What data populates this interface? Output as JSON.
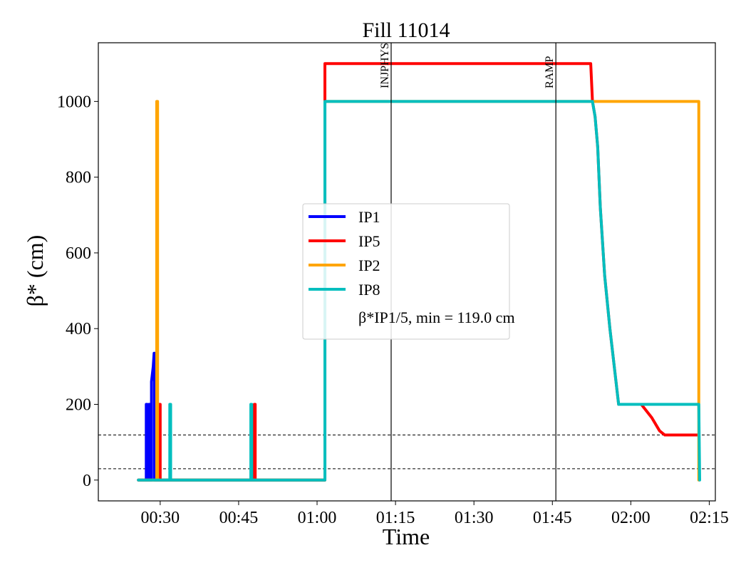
{
  "chart_data": {
    "type": "line",
    "title": "Fill 11014",
    "xlabel": "Time",
    "ylabel": "β* (cm)",
    "xlim": [
      "00:18:10",
      "02:16:10"
    ],
    "ylim": [
      -55,
      1155
    ],
    "x_ticks": [
      {
        "t": "00:30",
        "label": "00:30"
      },
      {
        "t": "00:45",
        "label": "00:45"
      },
      {
        "t": "01:00",
        "label": "01:00"
      },
      {
        "t": "01:15",
        "label": "01:15"
      },
      {
        "t": "01:30",
        "label": "01:30"
      },
      {
        "t": "01:45",
        "label": "01:45"
      },
      {
        "t": "02:00",
        "label": "02:00"
      },
      {
        "t": "02:15",
        "label": "02:15"
      }
    ],
    "y_ticks": [
      {
        "v": 0,
        "label": "0"
      },
      {
        "v": 200,
        "label": "200"
      },
      {
        "v": 400,
        "label": "400"
      },
      {
        "v": 600,
        "label": "600"
      },
      {
        "v": 800,
        "label": "800"
      },
      {
        "v": 1000,
        "label": "1000"
      }
    ],
    "grid": false,
    "legend_position": "center",
    "legend_note": "β*IP1/5, min = 119.0 cm",
    "hlines": [
      {
        "y": 119,
        "style": "dashed",
        "color": "#000000"
      },
      {
        "y": 30,
        "style": "dashed",
        "color": "#000000"
      }
    ],
    "vlines": [
      {
        "x": "01:14:10",
        "label": "INJPHYS",
        "color": "#000000"
      },
      {
        "x": "01:45:40",
        "label": "RAMP",
        "color": "#000000"
      }
    ],
    "series": [
      {
        "name": "IP1",
        "color": "#0000ff",
        "points": [
          [
            "00:25:50",
            0
          ],
          [
            "00:27:20",
            0
          ],
          [
            "00:27:20",
            200
          ],
          [
            "00:27:30",
            200
          ],
          [
            "00:27:30",
            0
          ],
          [
            "00:27:50",
            0
          ],
          [
            "00:27:50",
            200
          ],
          [
            "00:28:00",
            200
          ],
          [
            "00:28:00",
            0
          ],
          [
            "00:28:20",
            0
          ],
          [
            "00:28:20",
            260
          ],
          [
            "00:28:40",
            300
          ],
          [
            "00:28:50",
            335
          ],
          [
            "00:28:55",
            335
          ],
          [
            "00:28:55",
            0
          ],
          [
            "01:01:30",
            0
          ],
          [
            "01:01:30",
            1000
          ]
        ]
      },
      {
        "name": "IP5",
        "color": "#ff0000",
        "points": [
          [
            "00:25:50",
            0
          ],
          [
            "00:29:50",
            0
          ],
          [
            "00:29:50",
            200
          ],
          [
            "00:30:00",
            200
          ],
          [
            "00:30:00",
            0
          ],
          [
            "00:48:00",
            0
          ],
          [
            "00:48:00",
            200
          ],
          [
            "00:48:10",
            200
          ],
          [
            "00:48:10",
            0
          ],
          [
            "01:01:30",
            0
          ],
          [
            "01:01:30",
            1100
          ],
          [
            "01:52:20",
            1100
          ],
          [
            "01:52:40",
            1000
          ],
          [
            "01:53:10",
            960
          ],
          [
            "01:53:40",
            880
          ],
          [
            "01:54:10",
            720
          ],
          [
            "01:55:00",
            540
          ],
          [
            "01:56:00",
            400
          ],
          [
            "01:57:00",
            280
          ],
          [
            "01:57:40",
            200
          ],
          [
            "02:02:00",
            200
          ],
          [
            "02:04:00",
            165
          ],
          [
            "02:05:30",
            130
          ],
          [
            "02:06:30",
            119
          ],
          [
            "02:12:40",
            119
          ]
        ]
      },
      {
        "name": "IP2",
        "color": "#ffa500",
        "points": [
          [
            "00:25:50",
            0
          ],
          [
            "00:29:20",
            0
          ],
          [
            "00:29:20",
            1000
          ],
          [
            "00:29:30",
            1000
          ],
          [
            "00:29:30",
            0
          ],
          [
            "01:01:30",
            0
          ],
          [
            "01:01:30",
            1000
          ],
          [
            "02:13:00",
            1000
          ],
          [
            "02:13:00",
            0
          ]
        ]
      },
      {
        "name": "IP8",
        "color": "#00bebe",
        "points": [
          [
            "00:25:50",
            0
          ],
          [
            "00:31:50",
            0
          ],
          [
            "00:31:50",
            200
          ],
          [
            "00:32:00",
            200
          ],
          [
            "00:32:00",
            0
          ],
          [
            "00:47:20",
            0
          ],
          [
            "00:47:20",
            200
          ],
          [
            "00:47:30",
            200
          ],
          [
            "00:47:30",
            0
          ],
          [
            "01:01:30",
            0
          ],
          [
            "01:01:30",
            1000
          ],
          [
            "01:52:40",
            1000
          ],
          [
            "01:53:10",
            960
          ],
          [
            "01:53:40",
            880
          ],
          [
            "01:54:10",
            720
          ],
          [
            "01:55:00",
            540
          ],
          [
            "01:56:00",
            400
          ],
          [
            "01:57:00",
            280
          ],
          [
            "01:57:40",
            200
          ],
          [
            "02:13:00",
            200
          ],
          [
            "02:13:10",
            0
          ]
        ]
      }
    ]
  }
}
